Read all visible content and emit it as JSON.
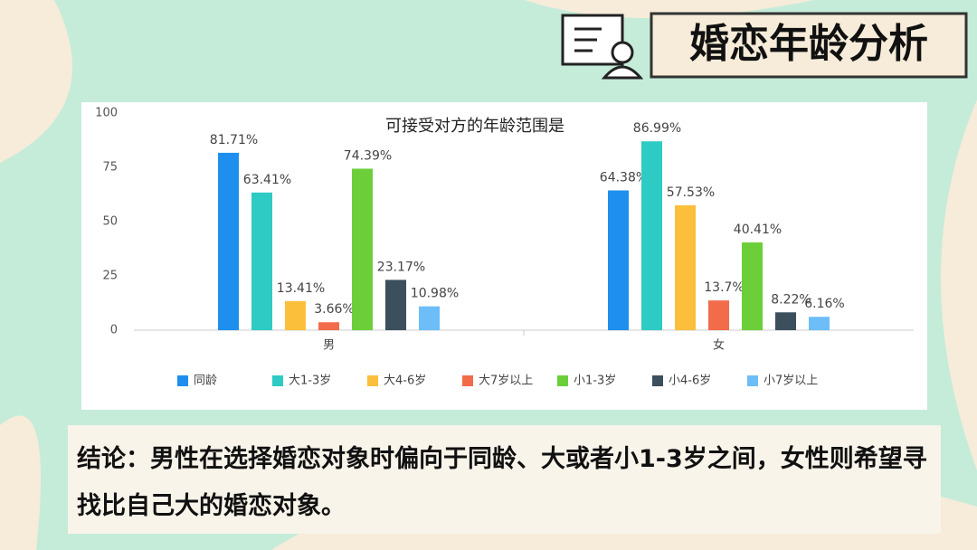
{
  "header": {
    "title": "婚恋年龄分析"
  },
  "chart_data": {
    "type": "bar",
    "title": "可接受对方的年龄范围是",
    "categories": [
      "男",
      "女"
    ],
    "series": [
      {
        "name": "同龄",
        "color": "#1e8fee",
        "values": [
          81.71,
          64.38
        ],
        "value_labels": [
          "81.71%",
          "64.38%"
        ]
      },
      {
        "name": "大1-3岁",
        "color": "#2dcbc4",
        "values": [
          63.41,
          86.99
        ],
        "value_labels": [
          "63.41%",
          "86.99%"
        ]
      },
      {
        "name": "大4-6岁",
        "color": "#fbbf3c",
        "values": [
          13.41,
          57.53
        ],
        "value_labels": [
          "13.41%",
          "57.53%"
        ]
      },
      {
        "name": "大7岁以上",
        "color": "#f26b4a",
        "values": [
          3.66,
          13.7
        ],
        "value_labels": [
          "3.66%",
          "13.7%"
        ]
      },
      {
        "name": "小1-3岁",
        "color": "#6ccf3a",
        "values": [
          74.39,
          40.41
        ],
        "value_labels": [
          "74.39%",
          "40.41%"
        ]
      },
      {
        "name": "小4-6岁",
        "color": "#3b4f5d",
        "values": [
          23.17,
          8.22
        ],
        "value_labels": [
          "23.17%",
          "8.22%"
        ]
      },
      {
        "name": "小7岁以上",
        "color": "#6dbdf8",
        "values": [
          10.98,
          6.16
        ],
        "value_labels": [
          "10.98%",
          "6.16%"
        ]
      }
    ],
    "ylim": [
      0,
      100
    ],
    "yticks": [
      0,
      25,
      50,
      75,
      100
    ],
    "grid": false,
    "legend": "bottom"
  },
  "conclusion": {
    "text": "结论：男性在选择婚恋对象时偏向于同龄、大或者小1-3岁之间，女性则希望寻找比自己大的婚恋对象。"
  }
}
